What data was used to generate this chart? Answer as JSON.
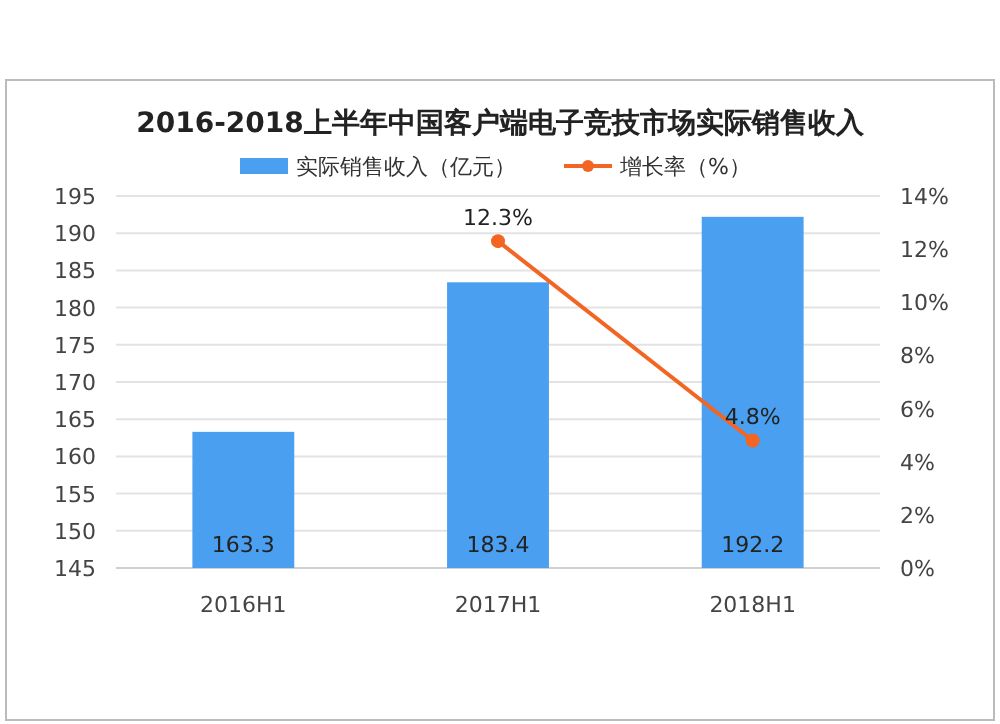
{
  "chart_data": {
    "type": "bar",
    "title": "2016-2018上半年中国客户端电子竞技市场实际销售收入",
    "categories": [
      "2016H1",
      "2017H1",
      "2018H1"
    ],
    "series": [
      {
        "name": "实际销售收入（亿元）",
        "color": "#4a9ff0",
        "values": [
          163.3,
          183.4,
          192.2
        ],
        "value_labels": [
          "163.3",
          "183.4",
          "192.2"
        ]
      },
      {
        "name": "增长率（%）",
        "type": "line",
        "axis": "y2",
        "color": "#f26522",
        "marker": "circle",
        "values": [
          null,
          12.3,
          4.8
        ],
        "value_labels": [
          null,
          "12.3%",
          "4.8%"
        ]
      }
    ],
    "ylim": [
      145,
      195
    ],
    "yticks": [
      145,
      150,
      155,
      160,
      165,
      170,
      175,
      180,
      185,
      190,
      195
    ],
    "y2lim": [
      0,
      14
    ],
    "y2ticks": [
      {
        "value": 0,
        "label": "0%"
      },
      {
        "value": 2,
        "label": "2%"
      },
      {
        "value": 4,
        "label": "4%"
      },
      {
        "value": 6,
        "label": "6%"
      },
      {
        "value": 8,
        "label": "8%"
      },
      {
        "value": 10,
        "label": "10%"
      },
      {
        "value": 12,
        "label": "12%"
      },
      {
        "value": 14,
        "label": "14%"
      }
    ],
    "grid": "y",
    "legend": "top"
  }
}
